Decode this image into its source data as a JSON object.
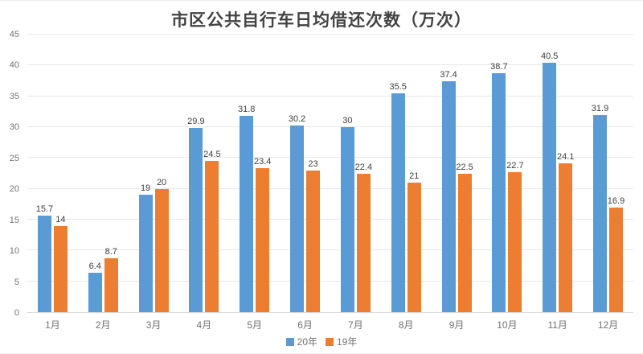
{
  "chart_data": {
    "type": "bar",
    "title": "市区公共自行车日均借还次数（万次）",
    "categories": [
      "1月",
      "2月",
      "3月",
      "4月",
      "5月",
      "6月",
      "7月",
      "8月",
      "9月",
      "10月",
      "11月",
      "12月"
    ],
    "series": [
      {
        "name": "20年",
        "color": "#5B9BD5",
        "values": [
          15.7,
          6.4,
          19,
          29.9,
          31.8,
          30.2,
          30,
          35.5,
          37.4,
          38.7,
          40.5,
          31.9
        ]
      },
      {
        "name": "19年",
        "color": "#ED7D31",
        "values": [
          14,
          8.7,
          20,
          24.5,
          23.4,
          23,
          22.4,
          21,
          22.5,
          22.7,
          24.1,
          16.9
        ]
      }
    ],
    "xlabel": "",
    "ylabel": "",
    "ylim": [
      0,
      45
    ],
    "yticks": [
      0,
      5,
      10,
      15,
      20,
      25,
      30,
      35,
      40,
      45
    ],
    "grid": true,
    "legend_position": "bottom",
    "data_labels": true
  }
}
